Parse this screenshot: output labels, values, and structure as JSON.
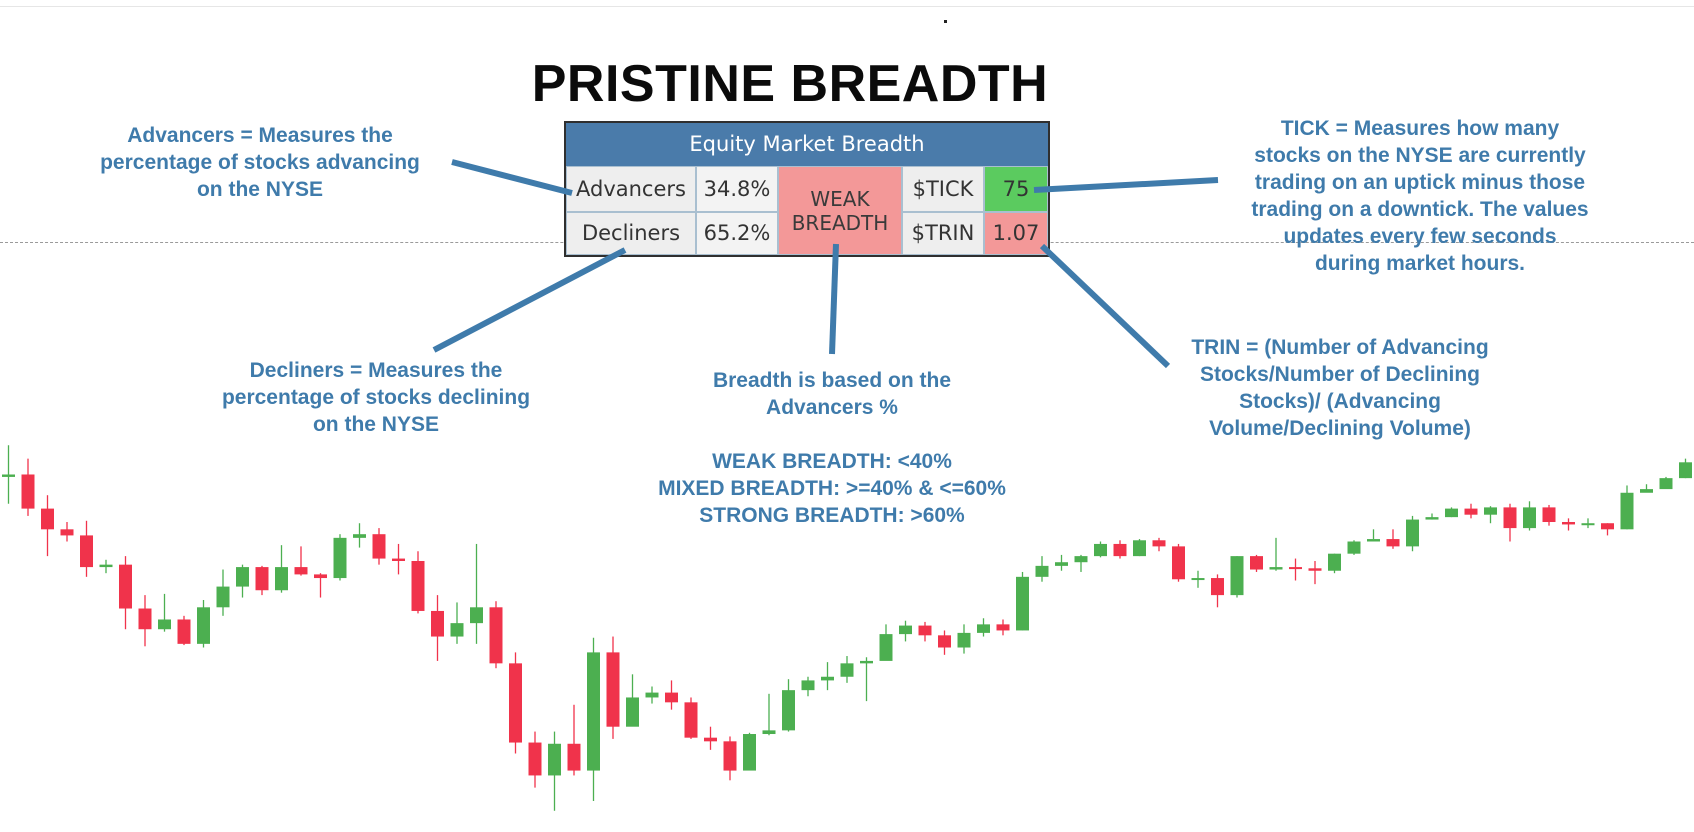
{
  "title": "PRISTINE BREADTH",
  "widget": {
    "header": "Equity Market Breadth",
    "advancers_label": "Advancers",
    "advancers_value": "34.8%",
    "decliners_label": "Decliners",
    "decliners_value": "65.2%",
    "breadth_status_line1": "WEAK",
    "breadth_status_line2": "BREADTH",
    "tick_label": "$TICK",
    "tick_value": "75",
    "trin_label": "$TRIN",
    "trin_value": "1.07",
    "colors": {
      "header": "#4a7baa",
      "weak": "#f39898",
      "positive": "#5bcb5f",
      "negative": "#f39898"
    }
  },
  "annotations": {
    "advancers": [
      "Advancers = Measures the",
      "percentage of stocks advancing",
      "on the NYSE"
    ],
    "decliners": [
      "Decliners = Measures the",
      "percentage of stocks declining",
      "on the NYSE"
    ],
    "tick": [
      "TICK = Measures how many",
      "stocks on the NYSE are currently",
      "trading on an uptick minus those",
      "trading on a downtick. The values",
      "updates every few seconds",
      "during market hours."
    ],
    "trin": [
      "TRIN = (Number of Advancing",
      "Stocks/Number of Declining",
      "Stocks)/ (Advancing",
      "Volume/Declining Volume)"
    ],
    "breadth": [
      "Breadth is based on the",
      "Advancers %",
      "",
      "WEAK BREADTH: <40%",
      "MIXED BREADTH: >=40% & <=60%",
      "STRONG BREADTH: >60%"
    ]
  },
  "colors": {
    "up": "#4caf50",
    "down": "#f0334b",
    "annotation": "#3f7bab",
    "connector": "#3f7bab"
  },
  "candles": [
    [
      100.0,
      100.2,
      102.6,
      97.8
    ],
    [
      100.2,
      97.4,
      101.5,
      96.8
    ],
    [
      97.4,
      95.7,
      98.5,
      93.5
    ],
    [
      95.7,
      95.2,
      96.3,
      94.7
    ],
    [
      95.2,
      92.6,
      96.4,
      91.8
    ],
    [
      92.6,
      92.8,
      93.2,
      92.1
    ],
    [
      92.8,
      89.2,
      93.5,
      87.5
    ],
    [
      89.2,
      87.5,
      90.3,
      86.1
    ],
    [
      87.5,
      88.3,
      90.4,
      87.3
    ],
    [
      88.3,
      86.3,
      88.6,
      86.2
    ],
    [
      86.3,
      89.3,
      89.9,
      86.0
    ],
    [
      89.3,
      91.0,
      92.4,
      88.6
    ],
    [
      91.0,
      92.6,
      92.8,
      90.1
    ],
    [
      92.6,
      90.7,
      92.7,
      90.3
    ],
    [
      90.7,
      92.6,
      94.4,
      90.5
    ],
    [
      92.6,
      92.0,
      94.3,
      91.9
    ],
    [
      92.0,
      91.7,
      92.1,
      90.1
    ],
    [
      91.7,
      95.0,
      95.3,
      91.5
    ],
    [
      95.0,
      95.3,
      96.2,
      94.2
    ],
    [
      95.3,
      93.3,
      95.8,
      92.8
    ],
    [
      93.3,
      93.1,
      94.5,
      92.0
    ],
    [
      93.1,
      89.0,
      93.9,
      88.8
    ],
    [
      89.0,
      86.9,
      90.3,
      84.9
    ],
    [
      86.9,
      88.0,
      89.7,
      86.3
    ],
    [
      88.0,
      89.3,
      94.5,
      86.3
    ],
    [
      89.3,
      84.7,
      89.8,
      84.3
    ],
    [
      84.7,
      78.2,
      85.6,
      77.3
    ],
    [
      78.2,
      75.5,
      79.1,
      74.5
    ],
    [
      75.5,
      78.1,
      79.1,
      72.6
    ],
    [
      78.1,
      75.9,
      81.3,
      75.5
    ],
    [
      75.9,
      85.6,
      86.8,
      73.4
    ],
    [
      85.6,
      79.5,
      86.9,
      78.5
    ],
    [
      79.5,
      81.9,
      83.8,
      80.4
    ],
    [
      81.9,
      82.3,
      82.8,
      81.4
    ],
    [
      82.3,
      81.5,
      83.3,
      80.9
    ],
    [
      81.5,
      78.6,
      81.9,
      78.5
    ],
    [
      78.6,
      78.3,
      79.5,
      77.6
    ],
    [
      78.3,
      75.9,
      78.7,
      75.1
    ],
    [
      75.9,
      78.9,
      79.0,
      76.3
    ],
    [
      78.9,
      79.2,
      82.2,
      78.8
    ],
    [
      79.2,
      82.5,
      83.4,
      79.1
    ],
    [
      82.5,
      83.3,
      83.6,
      82.0
    ],
    [
      83.3,
      83.6,
      84.8,
      82.5
    ],
    [
      83.6,
      84.7,
      85.3,
      83.1
    ],
    [
      84.7,
      84.9,
      85.2,
      81.6
    ],
    [
      84.9,
      87.1,
      87.9,
      86.0
    ],
    [
      87.1,
      87.8,
      88.2,
      86.5
    ],
    [
      87.8,
      87.0,
      88.1,
      86.5
    ],
    [
      87.0,
      86.0,
      87.4,
      85.4
    ],
    [
      86.0,
      87.2,
      87.9,
      85.5
    ],
    [
      87.2,
      87.9,
      88.4,
      86.9
    ],
    [
      87.9,
      87.4,
      88.3,
      87.0
    ],
    [
      87.4,
      91.8,
      92.2,
      87.4
    ],
    [
      91.8,
      92.7,
      93.5,
      91.4
    ],
    [
      92.7,
      93.0,
      93.6,
      92.3
    ],
    [
      93.0,
      93.5,
      93.6,
      92.2
    ],
    [
      93.5,
      94.5,
      94.7,
      93.4
    ],
    [
      94.5,
      93.5,
      94.8,
      93.3
    ],
    [
      93.5,
      94.8,
      94.9,
      93.5
    ],
    [
      94.8,
      94.3,
      95.0,
      93.9
    ],
    [
      94.3,
      91.6,
      94.5,
      91.4
    ],
    [
      91.6,
      91.7,
      92.3,
      90.9
    ],
    [
      91.7,
      90.3,
      92.0,
      89.3
    ],
    [
      90.3,
      93.5,
      93.5,
      90.1
    ],
    [
      93.5,
      92.4,
      93.6,
      92.2
    ],
    [
      92.4,
      92.6,
      95.0,
      92.3
    ],
    [
      92.6,
      92.5,
      93.3,
      91.5
    ],
    [
      92.5,
      92.3,
      93.1,
      91.2
    ],
    [
      92.3,
      93.7,
      93.7,
      92.1
    ],
    [
      93.7,
      94.7,
      94.8,
      93.6
    ],
    [
      94.7,
      94.9,
      95.7,
      94.9
    ],
    [
      94.9,
      94.3,
      95.7,
      94.1
    ],
    [
      94.3,
      96.5,
      96.8,
      93.9
    ],
    [
      96.5,
      96.7,
      97.0,
      96.5
    ],
    [
      96.7,
      97.4,
      97.5,
      96.7
    ],
    [
      97.4,
      96.9,
      97.8,
      96.6
    ],
    [
      96.9,
      97.5,
      97.6,
      96.2
    ],
    [
      97.5,
      95.8,
      97.8,
      94.7
    ],
    [
      95.8,
      97.5,
      98.0,
      95.6
    ],
    [
      97.5,
      96.3,
      97.7,
      96.0
    ],
    [
      96.3,
      96.1,
      96.6,
      95.6
    ],
    [
      96.1,
      96.2,
      96.6,
      95.8
    ],
    [
      96.2,
      95.7,
      96.2,
      95.2
    ],
    [
      95.7,
      98.7,
      99.3,
      95.7
    ],
    [
      98.7,
      99.0,
      99.4,
      98.8
    ],
    [
      99.0,
      99.9,
      100.0,
      99.1
    ],
    [
      99.9,
      101.2,
      101.5,
      99.9
    ],
    [
      101.2,
      102.2,
      102.4,
      101.0
    ],
    [
      102.2,
      103.0,
      103.3,
      102.0
    ],
    [
      103.0,
      102.9,
      103.0,
      102.8
    ],
    [
      102.9,
      103.5,
      103.6,
      102.6
    ],
    [
      103.5,
      104.9,
      105.3,
      103.6
    ]
  ]
}
